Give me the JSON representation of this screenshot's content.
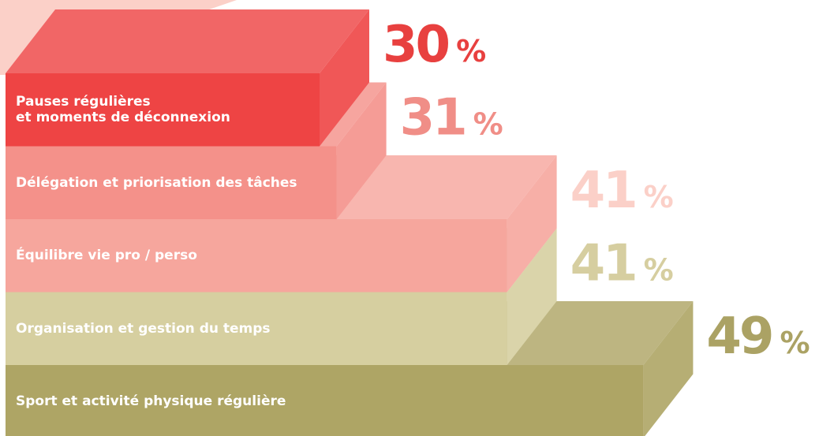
{
  "chart_data": {
    "type": "bar3d",
    "categories": [
      "Pauses régulières\net moments de déconnexion",
      "Délégation et priorisation des tâches",
      "Équilibre vie pro / perso",
      "Organisation et gestion du temps",
      "Sport et activité physique régulière"
    ],
    "values": [
      30,
      31,
      41,
      41,
      49
    ],
    "unit": "%",
    "colors": [
      "#ee4444",
      "#f4918a",
      "#f6a69d",
      "#d6cfa0",
      "#aea565"
    ],
    "label_colors": [
      "#e8403f",
      "#f08e87",
      "#fbd0c8",
      "#d6cea0",
      "#aba264"
    ]
  }
}
